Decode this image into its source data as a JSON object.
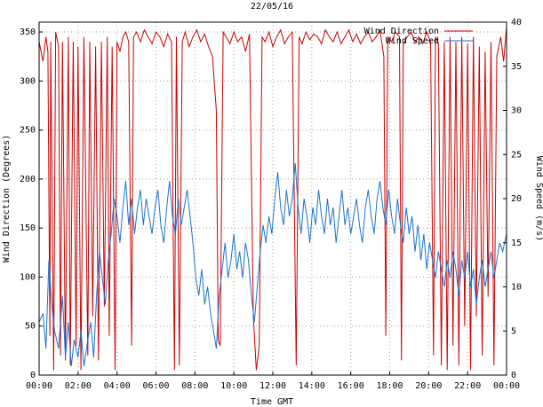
{
  "chart_data": {
    "type": "line",
    "title": "22/05/16",
    "xlabel": "Time GMT",
    "ylabel_left": "Wind Direction (Degrees)",
    "ylabel_right": "Wind Speed (m/s)",
    "x_tick_labels": [
      "00:00",
      "02:00",
      "04:00",
      "06:00",
      "08:00",
      "10:00",
      "12:00",
      "14:00",
      "16:00",
      "18:00",
      "20:00",
      "22:00",
      "00:00"
    ],
    "x_range_hours": [
      0,
      24
    ],
    "y_left_ticks": [
      0,
      50,
      100,
      150,
      200,
      250,
      300,
      350
    ],
    "y_left_range": [
      0,
      360
    ],
    "y_right_ticks": [
      0,
      5,
      10,
      15,
      20,
      25,
      30,
      35,
      40
    ],
    "y_right_range": [
      0,
      40
    ],
    "grid": true,
    "legend_position": "top-right",
    "series": [
      {
        "name": "Wind Direction",
        "axis": "left",
        "color": "#cc0000",
        "points": [
          [
            0.0,
            340
          ],
          [
            0.2,
            320
          ],
          [
            0.35,
            345
          ],
          [
            0.45,
            330
          ],
          [
            0.55,
            40
          ],
          [
            0.6,
            340
          ],
          [
            0.75,
            5
          ],
          [
            0.85,
            350
          ],
          [
            1.0,
            335
          ],
          [
            1.1,
            20
          ],
          [
            1.2,
            340
          ],
          [
            1.35,
            15
          ],
          [
            1.5,
            345
          ],
          [
            1.6,
            10
          ],
          [
            1.75,
            340
          ],
          [
            1.9,
            30
          ],
          [
            2.0,
            335
          ],
          [
            2.15,
            5
          ],
          [
            2.3,
            345
          ],
          [
            2.5,
            20
          ],
          [
            2.6,
            340
          ],
          [
            2.75,
            60
          ],
          [
            2.9,
            335
          ],
          [
            3.05,
            15
          ],
          [
            3.2,
            340
          ],
          [
            3.35,
            70
          ],
          [
            3.5,
            345
          ],
          [
            3.6,
            40
          ],
          [
            3.75,
            335
          ],
          [
            3.9,
            5
          ],
          [
            4.0,
            340
          ],
          [
            4.15,
            330
          ],
          [
            4.3,
            345
          ],
          [
            4.45,
            350
          ],
          [
            4.6,
            340
          ],
          [
            4.75,
            30
          ],
          [
            4.85,
            345
          ],
          [
            5.0,
            350
          ],
          [
            5.2,
            340
          ],
          [
            5.4,
            352
          ],
          [
            5.6,
            345
          ],
          [
            5.8,
            338
          ],
          [
            6.0,
            350
          ],
          [
            6.2,
            345
          ],
          [
            6.4,
            335
          ],
          [
            6.6,
            348
          ],
          [
            6.8,
            340
          ],
          [
            6.95,
            5
          ],
          [
            7.05,
            345
          ],
          [
            7.2,
            10
          ],
          [
            7.35,
            340
          ],
          [
            7.5,
            350
          ],
          [
            7.7,
            335
          ],
          [
            7.9,
            345
          ],
          [
            8.1,
            352
          ],
          [
            8.3,
            340
          ],
          [
            8.5,
            348
          ],
          [
            8.7,
            335
          ],
          [
            8.9,
            325
          ],
          [
            9.1,
            270
          ],
          [
            9.2,
            35
          ],
          [
            9.3,
            30
          ],
          [
            9.45,
            350
          ],
          [
            9.6,
            345
          ],
          [
            9.8,
            338
          ],
          [
            10.0,
            350
          ],
          [
            10.2,
            340
          ],
          [
            10.4,
            345
          ],
          [
            10.6,
            330
          ],
          [
            10.8,
            348
          ],
          [
            11.0,
            60
          ],
          [
            11.15,
            5
          ],
          [
            11.3,
            30
          ],
          [
            11.45,
            345
          ],
          [
            11.6,
            340
          ],
          [
            11.8,
            350
          ],
          [
            12.0,
            335
          ],
          [
            12.2,
            345
          ],
          [
            12.4,
            352
          ],
          [
            12.6,
            338
          ],
          [
            12.8,
            345
          ],
          [
            13.0,
            350
          ],
          [
            13.2,
            10
          ],
          [
            13.35,
            345
          ],
          [
            13.5,
            338
          ],
          [
            13.7,
            350
          ],
          [
            13.9,
            342
          ],
          [
            14.1,
            348
          ],
          [
            14.3,
            345
          ],
          [
            14.5,
            338
          ],
          [
            14.7,
            352
          ],
          [
            14.9,
            345
          ],
          [
            15.1,
            340
          ],
          [
            15.3,
            350
          ],
          [
            15.5,
            338
          ],
          [
            15.7,
            345
          ],
          [
            15.9,
            352
          ],
          [
            16.1,
            340
          ],
          [
            16.3,
            348
          ],
          [
            16.5,
            338
          ],
          [
            16.7,
            345
          ],
          [
            16.9,
            350
          ],
          [
            17.1,
            340
          ],
          [
            17.3,
            345
          ],
          [
            17.5,
            352
          ],
          [
            17.7,
            325
          ],
          [
            17.8,
            40
          ],
          [
            17.9,
            345
          ],
          [
            18.1,
            340
          ],
          [
            18.3,
            350
          ],
          [
            18.5,
            345
          ],
          [
            18.6,
            15
          ],
          [
            18.7,
            338
          ],
          [
            18.9,
            345
          ],
          [
            19.1,
            350
          ],
          [
            19.3,
            340
          ],
          [
            19.5,
            345
          ],
          [
            19.7,
            338
          ],
          [
            19.9,
            350
          ],
          [
            20.1,
            340
          ],
          [
            20.25,
            20
          ],
          [
            20.35,
            345
          ],
          [
            20.5,
            338
          ],
          [
            20.65,
            10
          ],
          [
            20.8,
            340
          ],
          [
            20.95,
            5
          ],
          [
            21.1,
            345
          ],
          [
            21.25,
            30
          ],
          [
            21.4,
            340
          ],
          [
            21.55,
            10
          ],
          [
            21.7,
            345
          ],
          [
            21.85,
            50
          ],
          [
            22.0,
            338
          ],
          [
            22.15,
            5
          ],
          [
            22.3,
            345
          ],
          [
            22.45,
            60
          ],
          [
            22.6,
            335
          ],
          [
            22.75,
            20
          ],
          [
            22.9,
            330
          ],
          [
            23.05,
            80
          ],
          [
            23.2,
            340
          ],
          [
            23.35,
            10
          ],
          [
            23.5,
            325
          ],
          [
            23.7,
            345
          ],
          [
            23.85,
            320
          ],
          [
            24.0,
            355
          ]
        ]
      },
      {
        "name": "Wind Speed",
        "axis": "right",
        "color": "#1a75d1",
        "points": [
          [
            0.0,
            6
          ],
          [
            0.2,
            7
          ],
          [
            0.35,
            3
          ],
          [
            0.5,
            13
          ],
          [
            0.65,
            8
          ],
          [
            0.8,
            5
          ],
          [
            1.0,
            3
          ],
          [
            1.2,
            9
          ],
          [
            1.35,
            2
          ],
          [
            1.5,
            6
          ],
          [
            1.65,
            1
          ],
          [
            1.8,
            4
          ],
          [
            2.0,
            2
          ],
          [
            2.15,
            5
          ],
          [
            2.3,
            1
          ],
          [
            2.5,
            4
          ],
          [
            2.65,
            6
          ],
          [
            2.8,
            2
          ],
          [
            2.95,
            9
          ],
          [
            3.1,
            14
          ],
          [
            3.25,
            11
          ],
          [
            3.4,
            8
          ],
          [
            3.55,
            13
          ],
          [
            3.7,
            16
          ],
          [
            3.85,
            20
          ],
          [
            4.0,
            18
          ],
          [
            4.15,
            15
          ],
          [
            4.3,
            19
          ],
          [
            4.45,
            22
          ],
          [
            4.6,
            17
          ],
          [
            4.75,
            20
          ],
          [
            4.9,
            16
          ],
          [
            5.05,
            19
          ],
          [
            5.2,
            21
          ],
          [
            5.35,
            17
          ],
          [
            5.5,
            20
          ],
          [
            5.65,
            18
          ],
          [
            5.8,
            16
          ],
          [
            5.95,
            19
          ],
          [
            6.1,
            21
          ],
          [
            6.25,
            17
          ],
          [
            6.4,
            15
          ],
          [
            6.55,
            19
          ],
          [
            6.7,
            22
          ],
          [
            6.85,
            18
          ],
          [
            7.0,
            16
          ],
          [
            7.15,
            20
          ],
          [
            7.3,
            17
          ],
          [
            7.45,
            19
          ],
          [
            7.6,
            21
          ],
          [
            7.75,
            18
          ],
          [
            7.9,
            15
          ],
          [
            8.05,
            11
          ],
          [
            8.2,
            9
          ],
          [
            8.35,
            12
          ],
          [
            8.5,
            8
          ],
          [
            8.65,
            10
          ],
          [
            8.8,
            7
          ],
          [
            8.95,
            5
          ],
          [
            9.1,
            3
          ],
          [
            9.25,
            9
          ],
          [
            9.4,
            12
          ],
          [
            9.55,
            15
          ],
          [
            9.7,
            11
          ],
          [
            9.85,
            13
          ],
          [
            10.0,
            16
          ],
          [
            10.15,
            12
          ],
          [
            10.3,
            14
          ],
          [
            10.45,
            11
          ],
          [
            10.6,
            15
          ],
          [
            10.75,
            13
          ],
          [
            10.9,
            9
          ],
          [
            11.05,
            6
          ],
          [
            11.2,
            10
          ],
          [
            11.35,
            14
          ],
          [
            11.5,
            17
          ],
          [
            11.65,
            15
          ],
          [
            11.8,
            18
          ],
          [
            11.95,
            16
          ],
          [
            12.1,
            20
          ],
          [
            12.25,
            23
          ],
          [
            12.4,
            19
          ],
          [
            12.55,
            17
          ],
          [
            12.7,
            21
          ],
          [
            12.85,
            18
          ],
          [
            13.0,
            20
          ],
          [
            13.15,
            24
          ],
          [
            13.3,
            19
          ],
          [
            13.45,
            16
          ],
          [
            13.6,
            20
          ],
          [
            13.75,
            18
          ],
          [
            13.9,
            15
          ],
          [
            14.05,
            19
          ],
          [
            14.2,
            17
          ],
          [
            14.35,
            21
          ],
          [
            14.5,
            18
          ],
          [
            14.65,
            16
          ],
          [
            14.8,
            20
          ],
          [
            14.95,
            17
          ],
          [
            15.1,
            19
          ],
          [
            15.25,
            15
          ],
          [
            15.4,
            18
          ],
          [
            15.55,
            21
          ],
          [
            15.7,
            17
          ],
          [
            15.85,
            19
          ],
          [
            16.0,
            16
          ],
          [
            16.15,
            18
          ],
          [
            16.3,
            20
          ],
          [
            16.45,
            17
          ],
          [
            16.6,
            15
          ],
          [
            16.75,
            19
          ],
          [
            16.9,
            21
          ],
          [
            17.05,
            18
          ],
          [
            17.2,
            16
          ],
          [
            17.35,
            20
          ],
          [
            17.5,
            22
          ],
          [
            17.65,
            19
          ],
          [
            17.8,
            17
          ],
          [
            17.95,
            21
          ],
          [
            18.1,
            18
          ],
          [
            18.25,
            16
          ],
          [
            18.4,
            20
          ],
          [
            18.55,
            17
          ],
          [
            18.7,
            15
          ],
          [
            18.85,
            19
          ],
          [
            19.0,
            16
          ],
          [
            19.15,
            18
          ],
          [
            19.3,
            14
          ],
          [
            19.45,
            17
          ],
          [
            19.6,
            13
          ],
          [
            19.75,
            16
          ],
          [
            19.9,
            12
          ],
          [
            20.05,
            15
          ],
          [
            20.2,
            13
          ],
          [
            20.35,
            11
          ],
          [
            20.5,
            14
          ],
          [
            20.65,
            12
          ],
          [
            20.8,
            10
          ],
          [
            20.95,
            13
          ],
          [
            21.1,
            11
          ],
          [
            21.25,
            14
          ],
          [
            21.4,
            12
          ],
          [
            21.55,
            9
          ],
          [
            21.7,
            13
          ],
          [
            21.85,
            11
          ],
          [
            22.0,
            14
          ],
          [
            22.15,
            10
          ],
          [
            22.3,
            12
          ],
          [
            22.45,
            8
          ],
          [
            22.6,
            11
          ],
          [
            22.75,
            13
          ],
          [
            22.9,
            10
          ],
          [
            23.05,
            12
          ],
          [
            23.2,
            14
          ],
          [
            23.35,
            11
          ],
          [
            23.5,
            13
          ],
          [
            23.65,
            15
          ],
          [
            23.8,
            14
          ],
          [
            24.0,
            16
          ]
        ]
      }
    ]
  }
}
